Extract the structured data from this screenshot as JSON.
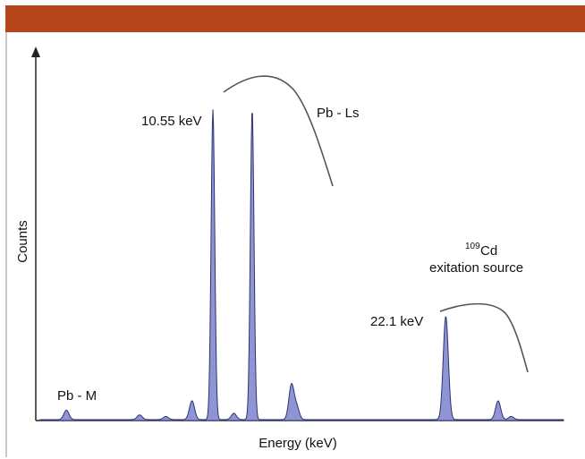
{
  "header": {
    "color": "#b5451b"
  },
  "chart_data": {
    "type": "area",
    "title": "",
    "xlabel": "Energy (keV)",
    "ylabel": "Counts",
    "series_color": "#8f95d3",
    "series_stroke": "#2f3370",
    "peaks": [
      {
        "x": 0.05,
        "h": 0.03,
        "label": ""
      },
      {
        "x": 0.19,
        "h": 0.015,
        "label": ""
      },
      {
        "x": 0.24,
        "h": 0.01,
        "label": ""
      },
      {
        "x": 0.29,
        "h": 0.06,
        "label": ""
      },
      {
        "x": 0.33,
        "h": 0.99,
        "label": "10.55 keV"
      },
      {
        "x": 0.37,
        "h": 0.02,
        "label": ""
      },
      {
        "x": 0.405,
        "h": 0.99,
        "label": ""
      },
      {
        "x": 0.48,
        "h": 0.11,
        "label": ""
      },
      {
        "x": 0.49,
        "h": 0.04,
        "label": ""
      },
      {
        "x": 0.775,
        "h": 0.33,
        "label": "22.1 keV"
      },
      {
        "x": 0.875,
        "h": 0.06,
        "label": ""
      },
      {
        "x": 0.9,
        "h": 0.01,
        "label": ""
      }
    ],
    "annotations": {
      "pb_ls": "Pb - Ls",
      "pb_m": "Pb - M",
      "cd_sup": "109",
      "cd_text": "Cd",
      "cd_source": "exitation source",
      "peak_10": "10.55 keV",
      "peak_22": "22.1 keV"
    }
  }
}
